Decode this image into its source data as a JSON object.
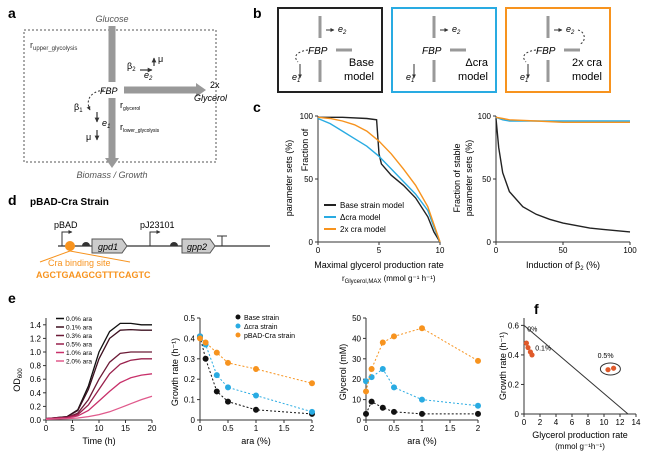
{
  "panels": {
    "a": "a",
    "b": "b",
    "c": "c",
    "d": "d",
    "e": "e",
    "f": "f"
  },
  "panel_a": {
    "glucose": "Glucose",
    "r_upper": "r",
    "r_upper_sub": "upper_glycolysis",
    "beta2": "β",
    "beta2_sub": "2",
    "e2": "e",
    "e2_sub": "2",
    "mu": "μ",
    "fbp": "FBP",
    "glycerol_2x": "2x",
    "glycerol": "Glycerol",
    "r_glycerol": "r",
    "r_glycerol_sub": "glycerol",
    "beta1": "β",
    "beta1_sub": "1",
    "e1": "e",
    "e1_sub": "1",
    "mu2": "μ",
    "r_lower": "r",
    "r_lower_sub": "lower_glycolysis",
    "biomass": "Biomass / Growth"
  },
  "panel_b": {
    "colors": {
      "base": "#222222",
      "dcra": "#29abe2",
      "x2cra": "#f7931e"
    },
    "models": [
      {
        "label1": "Base",
        "label2": "model"
      },
      {
        "label1": "Δcra",
        "label2": "model"
      },
      {
        "label1": "2x cra",
        "label2": "model"
      }
    ],
    "fbp": "FBP",
    "e2": "e",
    "e2_sub": "2",
    "e1": "e",
    "e1_sub": "1"
  },
  "panel_c": {
    "charts": [
      {
        "ylabel_lines": [
          "Fraction of",
          "parameter sets (%)"
        ],
        "xlabel": "Maximal glycerol production rate",
        "xlabel2": "r",
        "xlabel2_sub": "Glycerol,MAX",
        "xlabel2_units": " (mmol g⁻¹ h⁻¹)",
        "xticks": [
          "0",
          "5",
          "10"
        ],
        "yticks": [
          "0",
          "50",
          "100"
        ],
        "legend": [
          "Base strain model",
          "Δcra model",
          "2x  cra model"
        ]
      },
      {
        "ylabel_lines": [
          "Fraction of stable",
          "parameter sets (%)"
        ],
        "xlabel": "Induction of β",
        "xlabel_sub": "2",
        "xlabel_units": " (%)",
        "xticks": [
          "0",
          "50",
          "100"
        ],
        "yticks": [
          "0",
          "50",
          "100"
        ]
      }
    ]
  },
  "panel_d": {
    "title": "pBAD-Cra Strain",
    "pbad": "pBAD",
    "pj": "pJ23101",
    "gpd1": "gpd1",
    "gpp2": "gpp2",
    "site_label": "Cra binding site",
    "site_seq": "AGCTGAAGCGTTTCAGTC"
  },
  "panel_e": {
    "od": {
      "ylabel": "OD",
      "ylabel_sub": "600",
      "xlabel": "Time (h)",
      "xticks": [
        "0",
        "5",
        "10",
        "15",
        "20"
      ],
      "yticks": [
        "0.0",
        "0.2",
        "0.4",
        "0.6",
        "0.8",
        "1.0",
        "1.2",
        "1.4"
      ],
      "legend": [
        "0.0% ara",
        "0.1% ara",
        "0.3% ara",
        "0.5% ara",
        "1.0% ara",
        "2.0% ara"
      ],
      "colors": [
        "#111111",
        "#3d1020",
        "#6b1a36",
        "#99204c",
        "#c8306a",
        "#e05a8c"
      ]
    },
    "growth": {
      "ylabel": "Growth rate (h⁻¹)",
      "xlabel": "ara (%)",
      "xticks": [
        "0",
        "0.5",
        "1",
        "1.5",
        "2"
      ],
      "yticks": [
        "0",
        "0.1",
        "0.2",
        "0.3",
        "0.4",
        "0.5"
      ],
      "legend": [
        "Base strain",
        "Δcra strain",
        "pBAD-Cra strain"
      ]
    },
    "glycerol": {
      "ylabel": "Glycerol (mM)",
      "xlabel": "ara (%)",
      "xticks": [
        "0",
        "0.5",
        "1",
        "1.5",
        "2"
      ],
      "yticks": [
        "0",
        "10",
        "20",
        "30",
        "40",
        "50"
      ]
    }
  },
  "panel_f": {
    "ylabel": "Growth rate (h⁻¹)",
    "xlabel1": "Glycerol production rate",
    "xlabel2": "(mmol g⁻¹h⁻¹)",
    "xticks": [
      "0",
      "2",
      "4",
      "6",
      "8",
      "10",
      "12",
      "14"
    ],
    "yticks": [
      "0",
      "0.2",
      "0.4",
      "0.6"
    ],
    "ann": [
      "0%",
      "0.1%",
      "0.5%"
    ]
  },
  "chart_data": [
    {
      "type": "line",
      "title": "",
      "xlabel": "Maximal glycerol production rate",
      "ylabel": "Fraction of parameter sets (%)",
      "xlim": [
        0,
        10
      ],
      "ylim": [
        0,
        100
      ],
      "series": [
        {
          "name": "Base strain model",
          "color": "#222222",
          "x": [
            0,
            2,
            4,
            4.8,
            5,
            5.2,
            6,
            7,
            8,
            9,
            9.5,
            10
          ],
          "y": [
            99,
            99,
            98,
            97,
            70,
            62,
            53,
            45,
            35,
            20,
            8,
            0
          ]
        },
        {
          "name": "Δcra model",
          "color": "#29abe2",
          "x": [
            0,
            1,
            2,
            3,
            4,
            5,
            6,
            7,
            8,
            9,
            9.5,
            10
          ],
          "y": [
            98,
            94,
            88,
            82,
            76,
            68,
            58,
            48,
            38,
            25,
            12,
            0
          ]
        },
        {
          "name": "2x  cra model",
          "color": "#f7931e",
          "x": [
            0,
            1,
            2,
            3,
            4,
            5,
            6,
            7,
            8,
            9,
            9.5,
            10
          ],
          "y": [
            99,
            98,
            96,
            93,
            88,
            80,
            70,
            58,
            45,
            28,
            14,
            0
          ]
        }
      ]
    },
    {
      "type": "line",
      "title": "",
      "xlabel": "Induction of β2 (%)",
      "ylabel": "Fraction of stable parameter sets (%)",
      "xlim": [
        0,
        100
      ],
      "ylim": [
        0,
        100
      ],
      "series": [
        {
          "color": "#222222",
          "x": [
            0,
            2,
            5,
            10,
            20,
            30,
            40,
            50,
            60,
            70,
            80,
            90,
            100
          ],
          "y": [
            98,
            75,
            55,
            40,
            28,
            22,
            18,
            15,
            13,
            11,
            10,
            9,
            8
          ]
        },
        {
          "color": "#29abe2",
          "x": [
            0,
            5,
            10,
            30,
            50,
            100
          ],
          "y": [
            99,
            97,
            96,
            96,
            96,
            96
          ]
        },
        {
          "color": "#f7931e",
          "x": [
            0,
            5,
            10,
            30,
            50,
            100
          ],
          "y": [
            99,
            98,
            97,
            96,
            95,
            95
          ]
        }
      ]
    },
    {
      "type": "line",
      "title": "",
      "xlabel": "Time (h)",
      "ylabel": "OD600",
      "xlim": [
        0,
        20
      ],
      "ylim": [
        0,
        1.5
      ],
      "series": [
        {
          "name": "0.0% ara",
          "x": [
            0,
            4,
            6,
            8,
            10,
            12,
            14,
            16,
            18,
            20
          ],
          "y": [
            0.02,
            0.05,
            0.15,
            0.5,
            1.0,
            1.3,
            1.42,
            1.42,
            1.4,
            1.4
          ]
        },
        {
          "name": "0.1% ara",
          "x": [
            0,
            4,
            6,
            8,
            10,
            12,
            14,
            16,
            18,
            20
          ],
          "y": [
            0.02,
            0.05,
            0.14,
            0.45,
            0.9,
            1.2,
            1.32,
            1.33,
            1.32,
            1.32
          ]
        },
        {
          "name": "0.3% ara",
          "x": [
            0,
            4,
            6,
            8,
            10,
            12,
            14,
            16,
            18,
            20
          ],
          "y": [
            0.02,
            0.04,
            0.1,
            0.3,
            0.6,
            0.85,
            0.98,
            1.0,
            1.0,
            1.0
          ]
        },
        {
          "name": "0.5% ara",
          "x": [
            0,
            4,
            6,
            8,
            10,
            12,
            14,
            16,
            18,
            20
          ],
          "y": [
            0.02,
            0.04,
            0.08,
            0.22,
            0.45,
            0.68,
            0.82,
            0.88,
            0.9,
            0.9
          ]
        },
        {
          "name": "1.0% ara",
          "x": [
            0,
            4,
            6,
            8,
            10,
            12,
            14,
            16,
            18,
            20
          ],
          "y": [
            0.02,
            0.03,
            0.06,
            0.14,
            0.28,
            0.42,
            0.55,
            0.62,
            0.66,
            0.68
          ]
        },
        {
          "name": "2.0% ara",
          "x": [
            0,
            4,
            6,
            8,
            10,
            12,
            14,
            16,
            18,
            20
          ],
          "y": [
            0.01,
            0.02,
            0.03,
            0.05,
            0.08,
            0.12,
            0.18,
            0.24,
            0.3,
            0.35
          ]
        }
      ]
    },
    {
      "type": "scatter",
      "title": "",
      "xlabel": "ara (%)",
      "ylabel": "Growth rate (h⁻¹)",
      "xlim": [
        0,
        2
      ],
      "ylim": [
        0,
        0.5
      ],
      "series": [
        {
          "name": "Base strain",
          "color": "#111111",
          "x": [
            0,
            0.1,
            0.3,
            0.5,
            1,
            2
          ],
          "y": [
            0.41,
            0.3,
            0.14,
            0.09,
            0.05,
            0.03
          ]
        },
        {
          "name": "Δcra strain",
          "color": "#29abe2",
          "x": [
            0,
            0.1,
            0.3,
            0.5,
            1,
            2
          ],
          "y": [
            0.41,
            0.37,
            0.22,
            0.16,
            0.12,
            0.04
          ]
        },
        {
          "name": "pBAD-Cra strain",
          "color": "#f7931e",
          "x": [
            0,
            0.1,
            0.3,
            0.5,
            1,
            2
          ],
          "y": [
            0.4,
            0.38,
            0.33,
            0.28,
            0.25,
            0.18
          ]
        }
      ]
    },
    {
      "type": "scatter",
      "title": "",
      "xlabel": "ara (%)",
      "ylabel": "Glycerol (mM)",
      "xlim": [
        0,
        2
      ],
      "ylim": [
        0,
        50
      ],
      "series": [
        {
          "color": "#111111",
          "x": [
            0,
            0.1,
            0.3,
            0.5,
            1,
            2
          ],
          "y": [
            3,
            9,
            6,
            4,
            3,
            3
          ]
        },
        {
          "color": "#29abe2",
          "x": [
            0,
            0.1,
            0.3,
            0.5,
            1,
            2
          ],
          "y": [
            19,
            21,
            25,
            16,
            10,
            7
          ]
        },
        {
          "color": "#f7931e",
          "x": [
            0,
            0.1,
            0.3,
            0.5,
            1,
            2
          ],
          "y": [
            14,
            25,
            38,
            41,
            45,
            29
          ]
        }
      ]
    },
    {
      "type": "scatter",
      "title": "",
      "xlabel": "Glycerol production rate (mmol g⁻¹h⁻¹)",
      "ylabel": "Growth rate (h⁻¹)",
      "xlim": [
        0,
        14
      ],
      "ylim": [
        0,
        0.65
      ],
      "series": [
        {
          "color": "#e05a2a",
          "x": [
            0.3,
            0.5,
            0.8,
            1.0,
            10.5,
            11.2
          ],
          "y": [
            0.48,
            0.45,
            0.42,
            0.4,
            0.3,
            0.31
          ]
        }
      ],
      "line": {
        "x": [
          0,
          13
        ],
        "y": [
          0.6,
          0
        ]
      }
    }
  ]
}
